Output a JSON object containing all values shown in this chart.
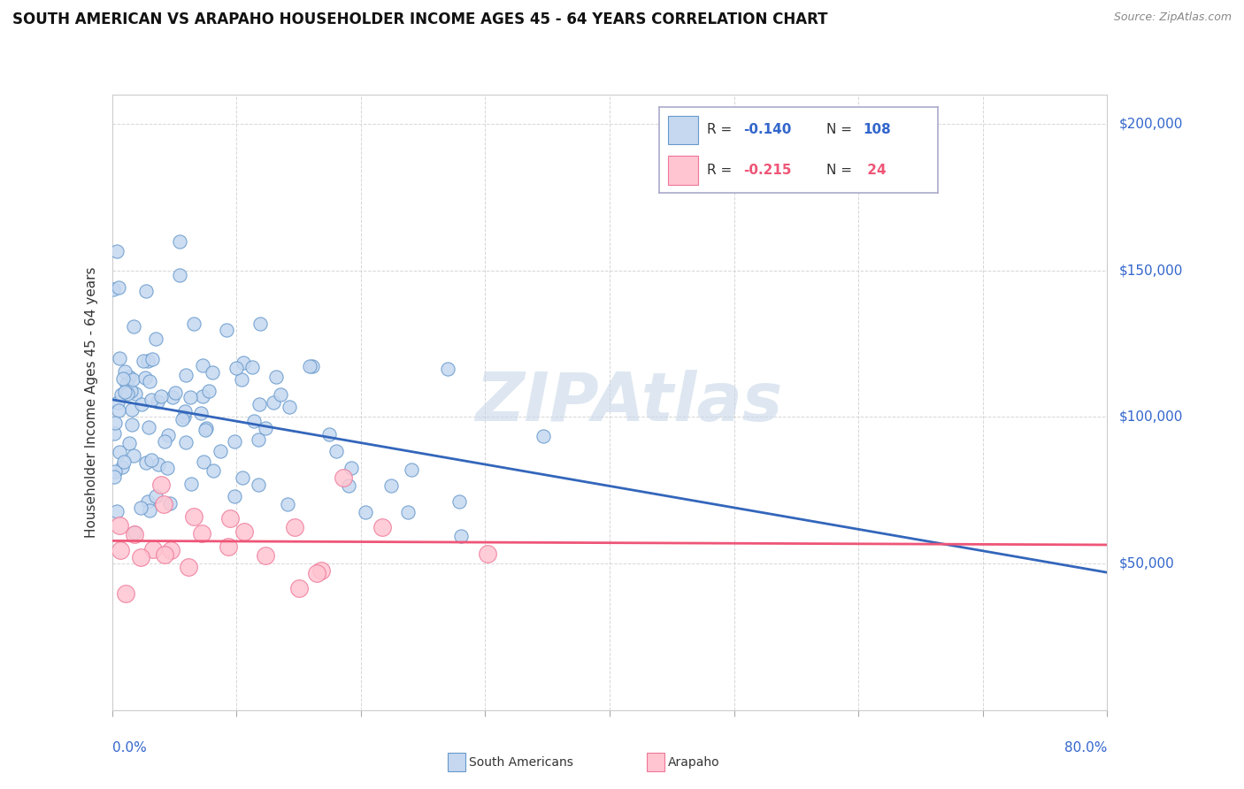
{
  "title": "SOUTH AMERICAN VS ARAPAHO HOUSEHOLDER INCOME AGES 45 - 64 YEARS CORRELATION CHART",
  "source": "Source: ZipAtlas.com",
  "ylabel": "Householder Income Ages 45 - 64 years",
  "watermark": "ZIPAtlas",
  "xlim": [
    0.0,
    80.0
  ],
  "ylim": [
    0,
    210000
  ],
  "ytick_vals": [
    0,
    50000,
    100000,
    150000,
    200000
  ],
  "ytick_labels": [
    "",
    "$50,000",
    "$100,000",
    "$150,000",
    "$200,000"
  ],
  "xtick_label_left": "0.0%",
  "xtick_label_right": "80.0%",
  "sa_color": "#c5d8f0",
  "sa_edge": "#6699cc",
  "sa_line_color": "#3366bb",
  "sa_R": -0.14,
  "sa_N": 108,
  "ar_color": "#ffc5d0",
  "ar_edge": "#ee7799",
  "ar_line_color": "#ee5577",
  "ar_R": -0.215,
  "ar_N": 24,
  "bg_color": "#ffffff",
  "grid_color": "#cccccc",
  "title_fontsize": 12,
  "label_fontsize": 11,
  "tick_fontsize": 11,
  "legend_color_blue": "#3366cc",
  "legend_color_pink": "#ee5577",
  "right_label_color": "#3366cc"
}
